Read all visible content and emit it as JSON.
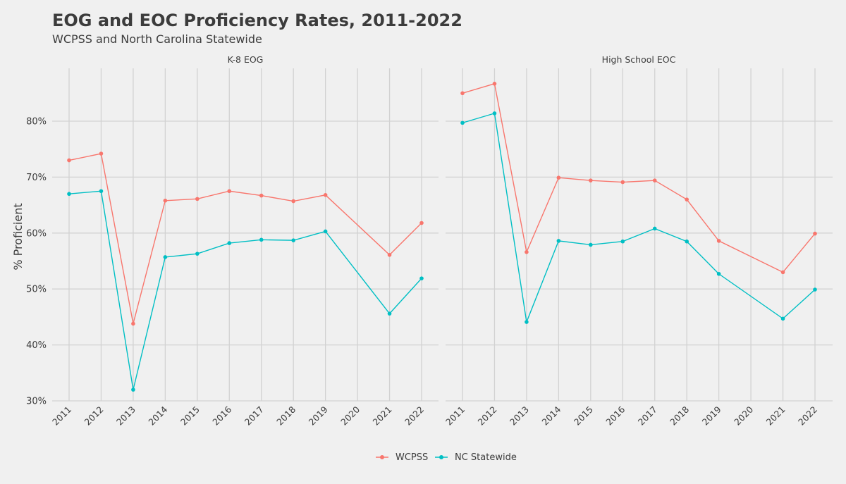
{
  "title": "EOG and EOC Proficiency Rates, 2011-2022",
  "subtitle": "WCPSS and North Carolina Statewide",
  "ylabel": "% Proficient",
  "colors": {
    "WCPSS": "#f8766d",
    "NC Statewide": "#00bfc4"
  },
  "legend": {
    "placement": "bottom",
    "items": [
      "WCPSS",
      "NC Statewide"
    ]
  },
  "chart_data": [
    {
      "type": "line",
      "panel": "K-8 EOG",
      "x": [
        2011,
        2012,
        2013,
        2014,
        2015,
        2016,
        2017,
        2018,
        2019,
        2020,
        2021,
        2022
      ],
      "x_ticks": [
        "2011",
        "2012",
        "2013",
        "2014",
        "2015",
        "2016",
        "2017",
        "2018",
        "2019",
        "2020",
        "2021",
        "2022"
      ],
      "ylim": [
        29,
        90
      ],
      "y_ticks": [
        30,
        40,
        50,
        60,
        70,
        80
      ],
      "y_tick_labels": [
        "30%",
        "40%",
        "50%",
        "60%",
        "70%",
        "80%"
      ],
      "grid": true,
      "series": [
        {
          "name": "WCPSS",
          "x": [
            2011,
            2012,
            2013,
            2014,
            2015,
            2016,
            2017,
            2018,
            2019,
            2021,
            2022
          ],
          "values": [
            73.0,
            74.2,
            43.8,
            65.8,
            66.1,
            67.5,
            66.7,
            65.7,
            66.8,
            56.1,
            61.8
          ]
        },
        {
          "name": "NC Statewide",
          "x": [
            2011,
            2012,
            2013,
            2014,
            2015,
            2016,
            2017,
            2018,
            2019,
            2021,
            2022
          ],
          "values": [
            67.0,
            67.5,
            32.0,
            55.7,
            56.3,
            58.2,
            58.8,
            58.7,
            60.3,
            45.6,
            51.9
          ]
        }
      ]
    },
    {
      "type": "line",
      "panel": "High School EOC",
      "x": [
        2011,
        2012,
        2013,
        2014,
        2015,
        2016,
        2017,
        2018,
        2019,
        2020,
        2021,
        2022
      ],
      "x_ticks": [
        "2011",
        "2012",
        "2013",
        "2014",
        "2015",
        "2016",
        "2017",
        "2018",
        "2019",
        "2020",
        "2021",
        "2022"
      ],
      "ylim": [
        29,
        90
      ],
      "y_ticks": [
        30,
        40,
        50,
        60,
        70,
        80
      ],
      "y_tick_labels": [
        "30%",
        "40%",
        "50%",
        "60%",
        "70%",
        "80%"
      ],
      "grid": true,
      "series": [
        {
          "name": "WCPSS",
          "x": [
            2011,
            2012,
            2013,
            2014,
            2015,
            2016,
            2017,
            2018,
            2019,
            2021,
            2022
          ],
          "values": [
            85.0,
            86.7,
            56.6,
            69.9,
            69.4,
            69.1,
            69.4,
            66.0,
            58.6,
            53.0,
            59.9
          ]
        },
        {
          "name": "NC Statewide",
          "x": [
            2011,
            2012,
            2013,
            2014,
            2015,
            2016,
            2017,
            2018,
            2019,
            2021,
            2022
          ],
          "values": [
            79.7,
            81.4,
            44.1,
            58.6,
            57.9,
            58.5,
            60.8,
            58.5,
            52.7,
            44.7,
            49.9
          ]
        }
      ]
    }
  ]
}
